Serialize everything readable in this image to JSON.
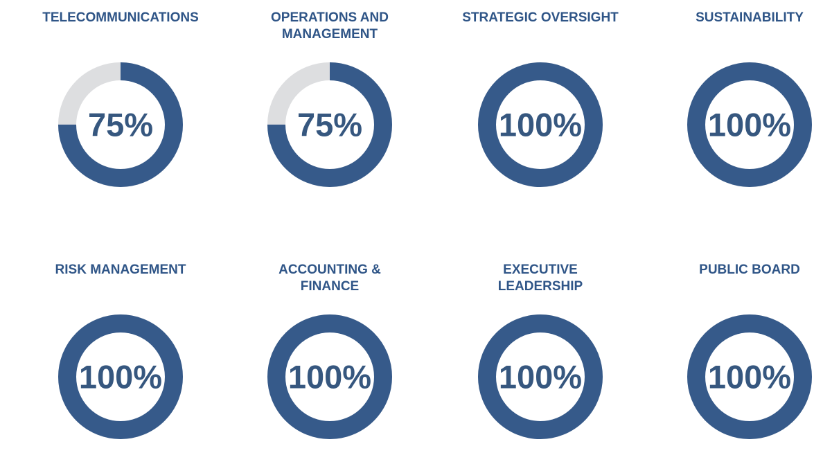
{
  "colors": {
    "filled": "#365a8a",
    "remaining": "#dddee0",
    "label": "#2f5587",
    "percent": "#36577f"
  },
  "chart_data": {
    "type": "donut",
    "items": [
      {
        "label": "TELECOMMUNICATIONS",
        "value": 75,
        "display": "75%"
      },
      {
        "label": "OPERATIONS AND\nMANAGEMENT",
        "value": 75,
        "display": "75%"
      },
      {
        "label": "STRATEGIC OVERSIGHT",
        "value": 100,
        "display": "100%"
      },
      {
        "label": "SUSTAINABILITY",
        "value": 100,
        "display": "100%"
      },
      {
        "label": "RISK MANAGEMENT",
        "value": 100,
        "display": "100%"
      },
      {
        "label": "ACCOUNTING &\nFINANCE",
        "value": 100,
        "display": "100%"
      },
      {
        "label": "EXECUTIVE\nLEADERSHIP",
        "value": 100,
        "display": "100%"
      },
      {
        "label": "PUBLIC BOARD",
        "value": 100,
        "display": "100%"
      }
    ]
  }
}
